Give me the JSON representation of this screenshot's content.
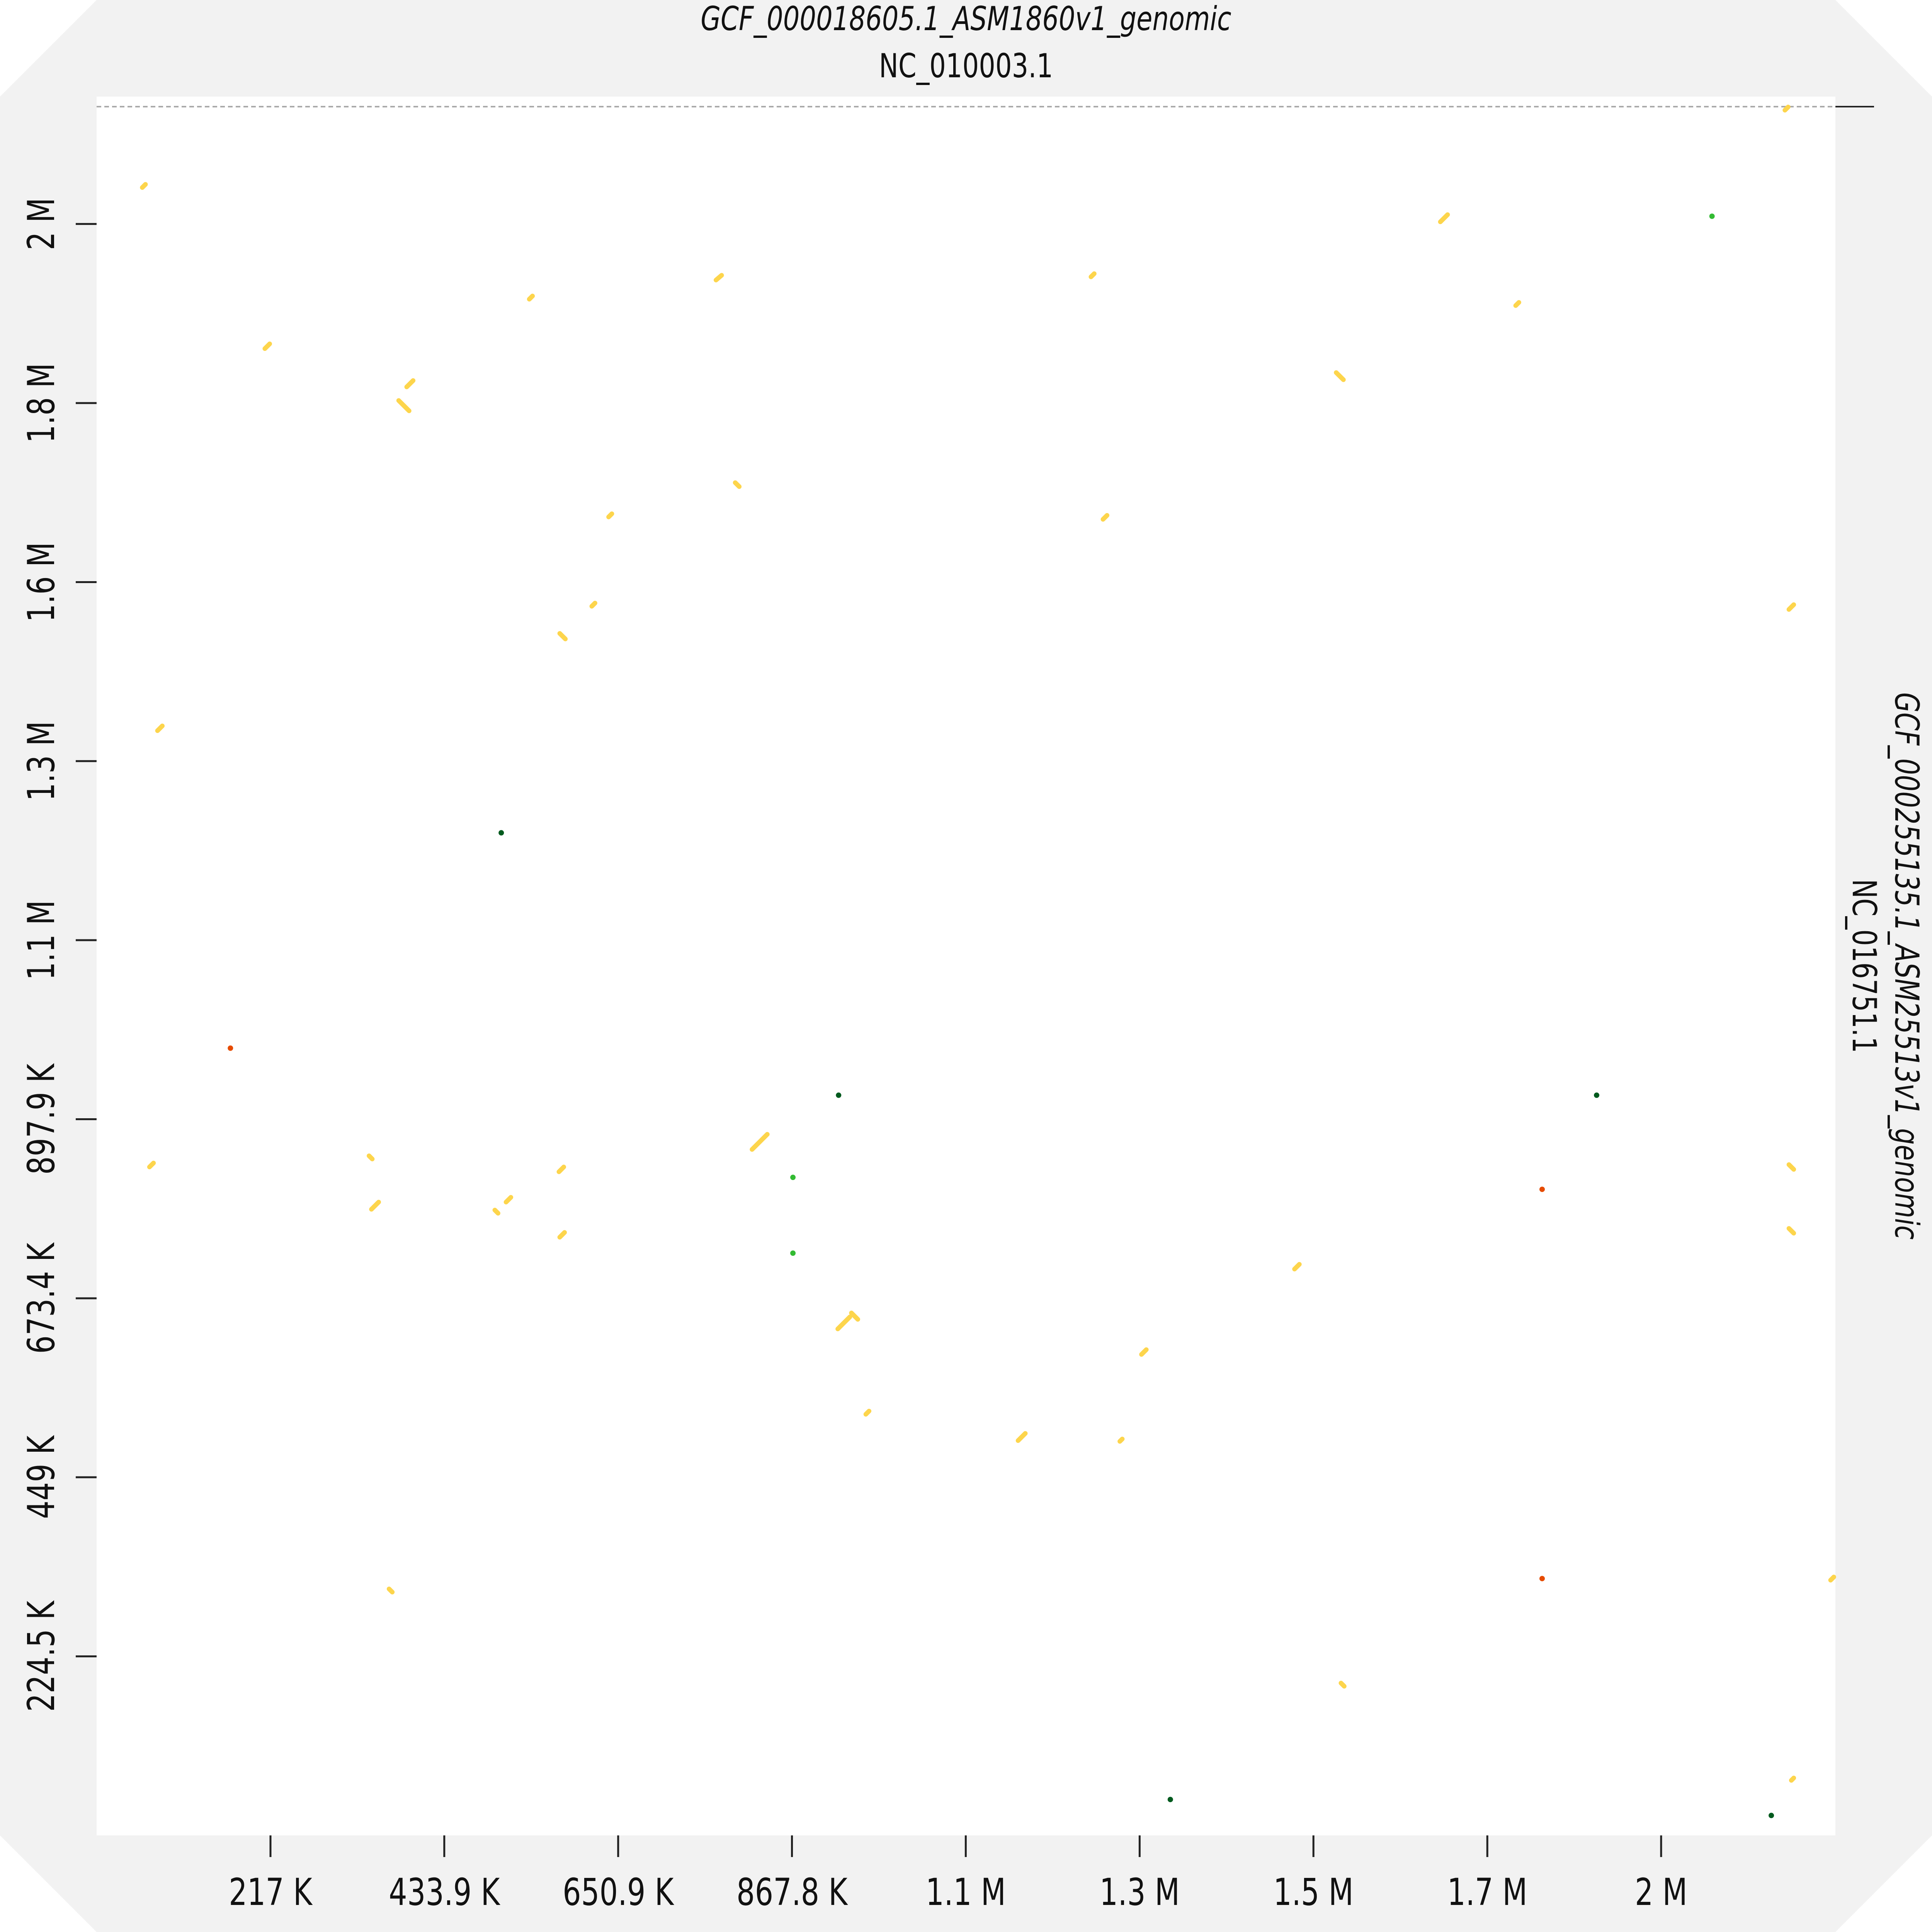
{
  "chart_data": {
    "type": "scatter",
    "title": "GCF_000018605.1_ASM1860v1_genomic",
    "subtitle": "NC_010003.1",
    "right_title": "GCF_000255135.1_ASM25513v1_genomic",
    "right_subtitle": "NC_016751.1",
    "xlabel": "",
    "ylabel": "",
    "x_ticks": [
      {
        "value": 217000,
        "label": "217 K"
      },
      {
        "value": 433900,
        "label": "433.9 K"
      },
      {
        "value": 650900,
        "label": "650.9 K"
      },
      {
        "value": 867800,
        "label": "867.8 K"
      },
      {
        "value": 1084700,
        "label": "1.1 M"
      },
      {
        "value": 1301700,
        "label": "1.3 M"
      },
      {
        "value": 1518600,
        "label": "1.5 M"
      },
      {
        "value": 1735600,
        "label": "1.7 M"
      },
      {
        "value": 1952500,
        "label": "2 M"
      }
    ],
    "y_ticks": [
      {
        "value": 224500,
        "label": "224.5 K"
      },
      {
        "value": 449000,
        "label": "449 K"
      },
      {
        "value": 673400,
        "label": "673.4 K"
      },
      {
        "value": 897900,
        "label": "897.9 K"
      },
      {
        "value": 1122400,
        "label": "1.1 M"
      },
      {
        "value": 1346900,
        "label": "1.3 M"
      },
      {
        "value": 1571300,
        "label": "1.6 M"
      },
      {
        "value": 1795800,
        "label": "1.8 M"
      },
      {
        "value": 2020300,
        "label": "2 M"
      }
    ],
    "xlim": [
      0,
      2170000
    ],
    "ylim": [
      0,
      2180000
    ],
    "grid": false,
    "colors": {
      "yellow": "#fdd54c",
      "orange": "#e64b00",
      "green": "#33bb33",
      "darkgreen": "#005a1e",
      "background": "#f2f2f2",
      "panel": "#ffffff",
      "axis": "#222222",
      "dashed": "#aaaaaa"
    },
    "segments": [
      {
        "x0": 57000,
        "y0": 2066000,
        "x1": 61000,
        "y1": 2070000,
        "color": "yellow"
      },
      {
        "x0": 210000,
        "y0": 1864000,
        "x1": 216000,
        "y1": 1870000,
        "color": "yellow"
      },
      {
        "x0": 76000,
        "y0": 1385000,
        "x1": 82000,
        "y1": 1391000,
        "color": "yellow"
      },
      {
        "x0": 66000,
        "y0": 838000,
        "x1": 71000,
        "y1": 843000,
        "color": "yellow"
      },
      {
        "x0": 377000,
        "y0": 1799000,
        "x1": 390000,
        "y1": 1786000,
        "color": "yellow"
      },
      {
        "x0": 387000,
        "y0": 1816000,
        "x1": 395000,
        "y1": 1824000,
        "color": "yellow"
      },
      {
        "x0": 540000,
        "y0": 1926000,
        "x1": 544000,
        "y1": 1930000,
        "color": "yellow"
      },
      {
        "x0": 773000,
        "y0": 1950000,
        "x1": 780000,
        "y1": 1956000,
        "color": "yellow"
      },
      {
        "x0": 797000,
        "y0": 1696000,
        "x1": 802000,
        "y1": 1691000,
        "color": "yellow"
      },
      {
        "x0": 639000,
        "y0": 1653000,
        "x1": 643000,
        "y1": 1657000,
        "color": "yellow"
      },
      {
        "x0": 618000,
        "y0": 1541000,
        "x1": 622000,
        "y1": 1545000,
        "color": "yellow"
      },
      {
        "x0": 578000,
        "y0": 1507000,
        "x1": 585000,
        "y1": 1500000,
        "color": "yellow"
      },
      {
        "x0": 340000,
        "y0": 852000,
        "x1": 344000,
        "y1": 848000,
        "color": "yellow"
      },
      {
        "x0": 343000,
        "y0": 785000,
        "x1": 352000,
        "y1": 794000,
        "color": "yellow"
      },
      {
        "x0": 497000,
        "y0": 784000,
        "x1": 501000,
        "y1": 780000,
        "color": "yellow"
      },
      {
        "x0": 511000,
        "y0": 794000,
        "x1": 517000,
        "y1": 800000,
        "color": "yellow"
      },
      {
        "x0": 577000,
        "y0": 832000,
        "x1": 583000,
        "y1": 838000,
        "color": "yellow"
      },
      {
        "x0": 578000,
        "y0": 750000,
        "x1": 584000,
        "y1": 756000,
        "color": "yellow"
      },
      {
        "x0": 365000,
        "y0": 309000,
        "x1": 369000,
        "y1": 305000,
        "color": "yellow"
      },
      {
        "x0": 818000,
        "y0": 860000,
        "x1": 837000,
        "y1": 879000,
        "color": "yellow"
      },
      {
        "x0": 925000,
        "y0": 635000,
        "x1": 940000,
        "y1": 650000,
        "color": "yellow"
      },
      {
        "x0": 942000,
        "y0": 655000,
        "x1": 950000,
        "y1": 647000,
        "color": "yellow"
      },
      {
        "x0": 960000,
        "y0": 528000,
        "x1": 964000,
        "y1": 532000,
        "color": "yellow"
      },
      {
        "x0": 1150000,
        "y0": 495000,
        "x1": 1159000,
        "y1": 504000,
        "color": "yellow"
      },
      {
        "x0": 1277000,
        "y0": 494000,
        "x1": 1280000,
        "y1": 497000,
        "color": "yellow"
      },
      {
        "x0": 1304000,
        "y0": 603000,
        "x1": 1310000,
        "y1": 609000,
        "color": "yellow"
      },
      {
        "x0": 1241000,
        "y0": 1954000,
        "x1": 1245000,
        "y1": 1958000,
        "color": "yellow"
      },
      {
        "x0": 1256000,
        "y0": 1650000,
        "x1": 1261000,
        "y1": 1655000,
        "color": "yellow"
      },
      {
        "x0": 1547000,
        "y0": 1834000,
        "x1": 1556000,
        "y1": 1825000,
        "color": "yellow"
      },
      {
        "x0": 1495000,
        "y0": 710000,
        "x1": 1501000,
        "y1": 716000,
        "color": "yellow"
      },
      {
        "x0": 1553000,
        "y0": 191000,
        "x1": 1557000,
        "y1": 187000,
        "color": "yellow"
      },
      {
        "x0": 1677000,
        "y0": 2023000,
        "x1": 1686000,
        "y1": 2032000,
        "color": "yellow"
      },
      {
        "x0": 1771000,
        "y0": 1918000,
        "x1": 1775000,
        "y1": 1922000,
        "color": "yellow"
      },
      {
        "x0": 2107000,
        "y0": 2163000,
        "x1": 2111000,
        "y1": 2167000,
        "color": "yellow"
      },
      {
        "x0": 2112000,
        "y0": 1537000,
        "x1": 2118000,
        "y1": 1543000,
        "color": "yellow"
      },
      {
        "x0": 2112000,
        "y0": 841000,
        "x1": 2118000,
        "y1": 835000,
        "color": "yellow"
      },
      {
        "x0": 2112000,
        "y0": 761000,
        "x1": 2118000,
        "y1": 755000,
        "color": "yellow"
      },
      {
        "x0": 2115000,
        "y0": 69000,
        "x1": 2118000,
        "y1": 72000,
        "color": "yellow"
      },
      {
        "x0": 2164000,
        "y0": 320000,
        "x1": 2168000,
        "y1": 324000,
        "color": "yellow"
      }
    ],
    "points": [
      {
        "x": 167000,
        "y": 987000,
        "color": "orange"
      },
      {
        "x": 1804000,
        "y": 810000,
        "color": "orange"
      },
      {
        "x": 1804000,
        "y": 322000,
        "color": "orange"
      },
      {
        "x": 505000,
        "y": 1257000,
        "color": "darkgreen"
      },
      {
        "x": 926000,
        "y": 928000,
        "color": "darkgreen"
      },
      {
        "x": 1872000,
        "y": 928000,
        "color": "darkgreen"
      },
      {
        "x": 1340000,
        "y": 45000,
        "color": "darkgreen"
      },
      {
        "x": 2090000,
        "y": 25000,
        "color": "darkgreen"
      },
      {
        "x": 869000,
        "y": 825000,
        "color": "green"
      },
      {
        "x": 869000,
        "y": 730000,
        "color": "green"
      },
      {
        "x": 2016000,
        "y": 2030000,
        "color": "green"
      }
    ]
  }
}
